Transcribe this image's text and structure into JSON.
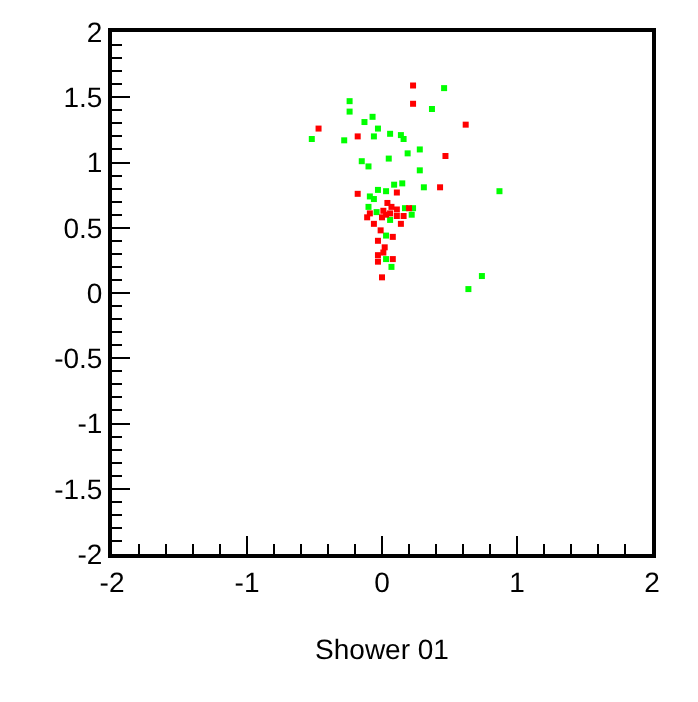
{
  "chart_data": {
    "type": "scatter",
    "xlabel": "Shower 01",
    "marker": "square",
    "xlim": [
      -2,
      2
    ],
    "ylim": [
      -2,
      2
    ],
    "xticks": [
      -2,
      -1,
      0,
      1,
      2
    ],
    "yticks": [
      -2,
      -1.5,
      -1,
      -0.5,
      0,
      0.5,
      1,
      1.5,
      2
    ],
    "series": [
      {
        "color": "#00ff00",
        "x": [
          0.46,
          0.37,
          -0.24,
          -0.24,
          -0.07,
          -0.13,
          -0.03,
          -0.06,
          0.14,
          0.16,
          0.06,
          -0.52,
          -0.28,
          0.28,
          0.19,
          0.05,
          -0.15,
          -0.1,
          0.28,
          0.09,
          0.15,
          -0.03,
          0.03,
          0.31,
          -0.09,
          -0.06,
          0.87,
          -0.1,
          -0.04,
          0.17,
          0.23,
          0.22,
          0.06,
          0.03,
          0.03,
          0.07,
          0.74,
          0.64
        ],
        "values": [
          1.57,
          1.41,
          1.47,
          1.39,
          1.35,
          1.31,
          1.26,
          1.2,
          1.21,
          1.18,
          1.22,
          1.18,
          1.17,
          1.1,
          1.07,
          1.03,
          1.01,
          0.97,
          0.94,
          0.83,
          0.84,
          0.79,
          0.78,
          0.81,
          0.74,
          0.72,
          0.78,
          0.66,
          0.62,
          0.65,
          0.65,
          0.6,
          0.56,
          0.44,
          0.26,
          0.2,
          0.13,
          0.03
        ]
      },
      {
        "color": "#ff0000",
        "x": [
          0.23,
          0.23,
          -0.47,
          -0.18,
          0.62,
          0.47,
          -0.18,
          0.11,
          0.43,
          0.04,
          0.07,
          0.11,
          0.01,
          -0.09,
          -0.11,
          0.0,
          0.03,
          0.06,
          0.16,
          0.11,
          0.14,
          -0.06,
          -0.01,
          0.08,
          -0.03,
          0.02,
          0.01,
          -0.03,
          0.08,
          -0.03,
          0.0,
          0.2
        ],
        "values": [
          1.59,
          1.45,
          1.26,
          1.2,
          1.29,
          1.05,
          0.76,
          0.77,
          0.81,
          0.69,
          0.66,
          0.64,
          0.63,
          0.61,
          0.58,
          0.58,
          0.6,
          0.61,
          0.59,
          0.59,
          0.53,
          0.53,
          0.48,
          0.43,
          0.4,
          0.35,
          0.31,
          0.29,
          0.26,
          0.24,
          0.12,
          0.65
        ]
      }
    ]
  }
}
